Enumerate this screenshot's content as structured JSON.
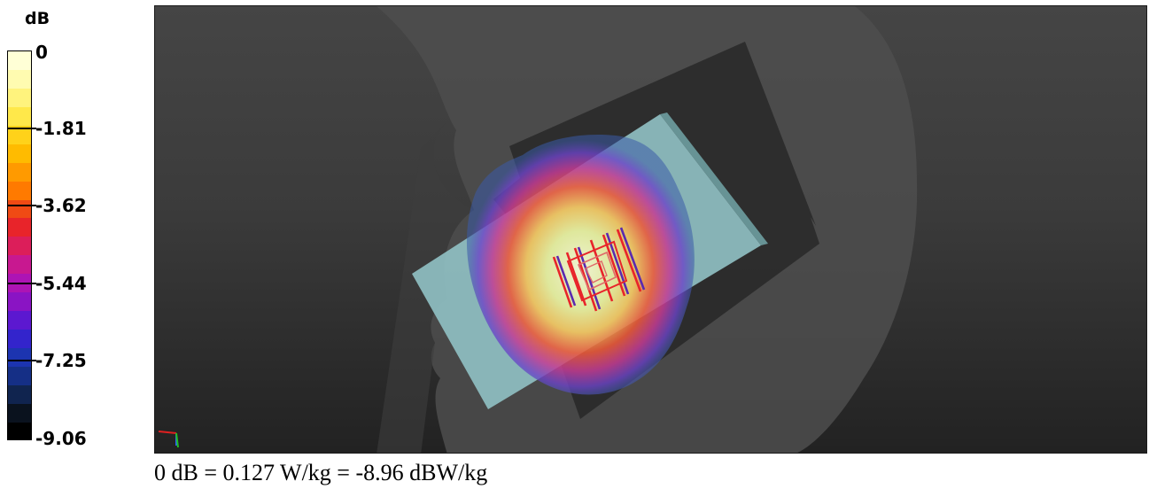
{
  "legend": {
    "unit": "dB",
    "ticks": [
      "0",
      "-1.81",
      "-3.62",
      "-5.44",
      "-7.25",
      "-9.06"
    ],
    "band_colors": [
      "#ffffd6",
      "#fffbb0",
      "#fff37d",
      "#ffe84a",
      "#ffd21a",
      "#ffbb00",
      "#ff9a00",
      "#ff7a00",
      "#f04a14",
      "#e8242a",
      "#dc1e5a",
      "#c81890",
      "#ad14b4",
      "#8a14c4",
      "#5c18d0",
      "#3324cc",
      "#1c34b0",
      "#152f86",
      "#10244f",
      "#0a121e",
      "#000000"
    ]
  },
  "caption": "0 dB = 0.127 W/kg = -8.96 dBW/kg",
  "scene": {
    "background_colors": [
      "#454545",
      "#222222"
    ],
    "head_color": "#4e4e4e",
    "ground_plane_color": "#2a2a2a",
    "phone_color": "#8fbfc2",
    "axis_icons": [
      "x-axis-red",
      "y-axis-green",
      "z-axis-blue"
    ]
  }
}
